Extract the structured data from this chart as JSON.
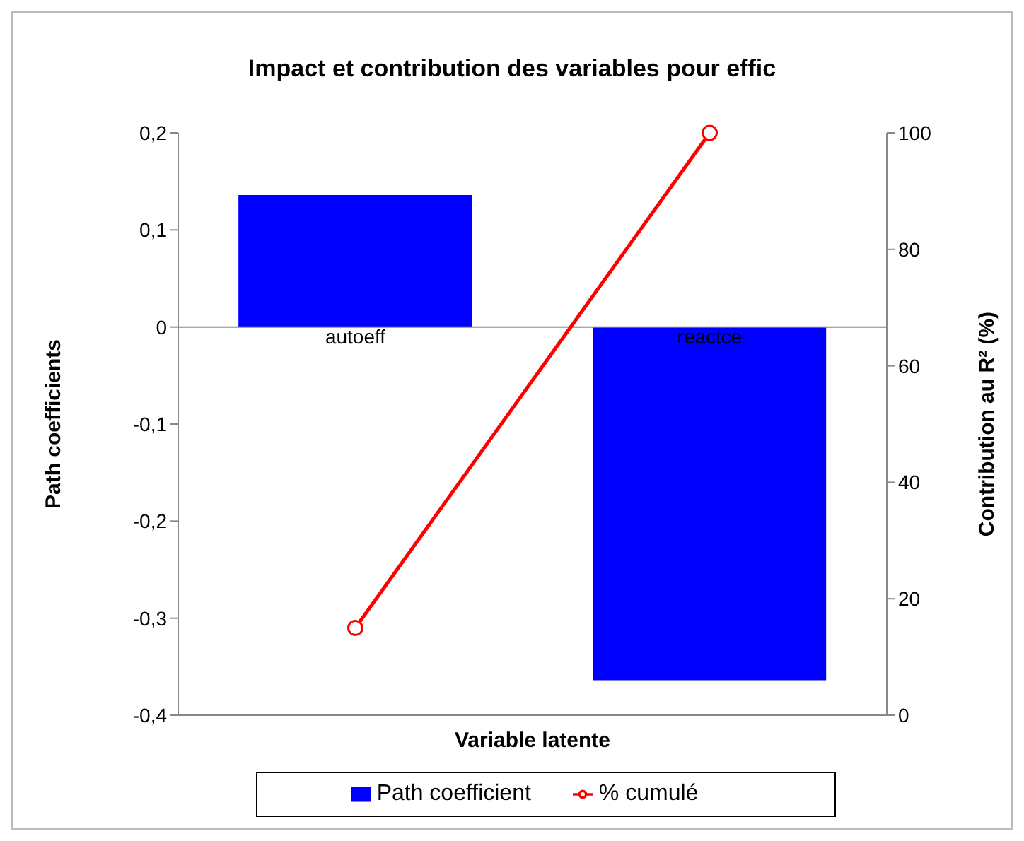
{
  "chart_data": {
    "type": "bar",
    "title": "Impact et contribution des variables pour effic",
    "xlabel": "Variable latente",
    "ylabel": "Path coefficients",
    "y2label": "Contribution au R² (%)",
    "categories": [
      "autoeff",
      "reactce"
    ],
    "series": [
      {
        "name": "Path coefficient",
        "color": "#0000ff",
        "values": [
          0.136,
          -0.364
        ]
      },
      {
        "name": "% cumulé",
        "type": "line",
        "axis": "y2",
        "color": "#ff0000",
        "marker": "circle",
        "values": [
          15,
          100
        ]
      }
    ],
    "ylim": [
      -0.4,
      0.2
    ],
    "yticks": [
      {
        "value": -0.4,
        "label": "-0,4"
      },
      {
        "value": -0.3,
        "label": "-0,3"
      },
      {
        "value": -0.2,
        "label": "-0,2"
      },
      {
        "value": -0.1,
        "label": "-0,1"
      },
      0,
      {
        "value": 0.1,
        "label": "0,1"
      },
      {
        "value": 0.2,
        "label": "0,2"
      }
    ],
    "y2lim": [
      0,
      100
    ],
    "y2ticks": [
      0,
      20,
      40,
      60,
      80,
      100
    ],
    "grid": false,
    "legend": "bottom"
  }
}
